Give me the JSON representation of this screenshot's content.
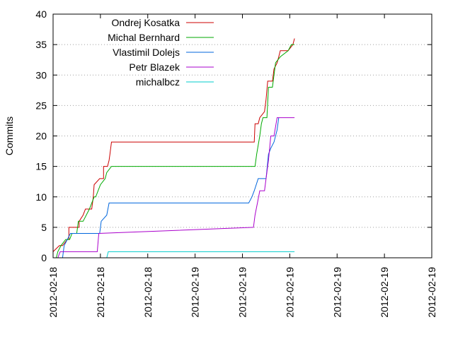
{
  "chart_data": {
    "type": "line",
    "title": "",
    "xlabel": "",
    "ylabel": "Commits",
    "ylim": [
      0,
      40
    ],
    "xlim": [
      "2012-02-18 00:00",
      "2012-02-20 00:00"
    ],
    "y_ticks": [
      "0",
      "5",
      "10",
      "15",
      "20",
      "25",
      "30",
      "35",
      "40"
    ],
    "x_ticks": [
      "2012-02-18",
      "2012-02-18",
      "2012-02-18",
      "2012-02-19",
      "2012-02-19",
      "2012-02-19",
      "2012-02-19",
      "2012-02-19",
      "2012-02-19"
    ],
    "grid": "horizontal dotted",
    "legend_position": "top-left",
    "series": [
      {
        "name": "Ondrej Kosatka",
        "color": "#cc0000",
        "points": [
          [
            "2012-02-18 00:00",
            1
          ],
          [
            "2012-02-18 00:48",
            2
          ],
          [
            "2012-02-18 01:12",
            2
          ],
          [
            "2012-02-18 01:48",
            3
          ],
          [
            "2012-02-18 02:00",
            3
          ],
          [
            "2012-02-18 02:00",
            5
          ],
          [
            "2012-02-18 03:18",
            5
          ],
          [
            "2012-02-18 03:18",
            6
          ],
          [
            "2012-02-18 03:48",
            7
          ],
          [
            "2012-02-18 04:06",
            8
          ],
          [
            "2012-02-18 04:54",
            8
          ],
          [
            "2012-02-18 05:06",
            10
          ],
          [
            "2012-02-18 05:12",
            12
          ],
          [
            "2012-02-18 05:54",
            13
          ],
          [
            "2012-02-18 06:24",
            13
          ],
          [
            "2012-02-18 06:24",
            15
          ],
          [
            "2012-02-18 06:54",
            15
          ],
          [
            "2012-02-18 07:06",
            16
          ],
          [
            "2012-02-18 07:12",
            17
          ],
          [
            "2012-02-18 07:24",
            19
          ],
          [
            "2012-02-19 01:30",
            19
          ],
          [
            "2012-02-19 01:36",
            22
          ],
          [
            "2012-02-19 02:00",
            22
          ],
          [
            "2012-02-19 02:12",
            23
          ],
          [
            "2012-02-19 02:48",
            24
          ],
          [
            "2012-02-19 03:00",
            26
          ],
          [
            "2012-02-19 03:12",
            29
          ],
          [
            "2012-02-19 03:48",
            29
          ],
          [
            "2012-02-19 04:00",
            31
          ],
          [
            "2012-02-19 04:24",
            32
          ],
          [
            "2012-02-19 04:36",
            33
          ],
          [
            "2012-02-19 04:48",
            34
          ],
          [
            "2012-02-19 05:48",
            34
          ],
          [
            "2012-02-19 06:24",
            35
          ],
          [
            "2012-02-19 06:36",
            36
          ]
        ]
      },
      {
        "name": "Michal Bernhard",
        "color": "#00aa00",
        "points": [
          [
            "2012-02-18 00:24",
            0
          ],
          [
            "2012-02-18 00:36",
            1
          ],
          [
            "2012-02-18 01:00",
            2
          ],
          [
            "2012-02-18 01:36",
            3
          ],
          [
            "2012-02-18 02:06",
            3
          ],
          [
            "2012-02-18 02:24",
            4
          ],
          [
            "2012-02-18 03:00",
            4
          ],
          [
            "2012-02-18 03:12",
            6
          ],
          [
            "2012-02-18 03:48",
            6
          ],
          [
            "2012-02-18 04:36",
            8
          ],
          [
            "2012-02-18 05:12",
            10
          ],
          [
            "2012-02-18 05:24",
            10
          ],
          [
            "2012-02-18 06:00",
            12
          ],
          [
            "2012-02-18 06:36",
            13
          ],
          [
            "2012-02-18 06:48",
            14
          ],
          [
            "2012-02-18 07:24",
            15
          ],
          [
            "2012-02-19 01:36",
            15
          ],
          [
            "2012-02-19 01:48",
            17
          ],
          [
            "2012-02-19 02:12",
            20
          ],
          [
            "2012-02-19 02:24",
            22
          ],
          [
            "2012-02-19 02:36",
            23
          ],
          [
            "2012-02-19 03:06",
            23
          ],
          [
            "2012-02-19 03:18",
            28
          ],
          [
            "2012-02-19 03:48",
            28
          ],
          [
            "2012-02-19 04:00",
            30
          ],
          [
            "2012-02-19 04:12",
            32
          ],
          [
            "2012-02-19 04:48",
            33
          ],
          [
            "2012-02-19 05:48",
            34
          ],
          [
            "2012-02-19 06:12",
            35
          ],
          [
            "2012-02-19 06:36",
            35
          ]
        ]
      },
      {
        "name": "Vlastimil Dolejs",
        "color": "#0066dd",
        "points": [
          [
            "2012-02-18 01:12",
            0
          ],
          [
            "2012-02-18 01:24",
            2
          ],
          [
            "2012-02-18 01:48",
            3
          ],
          [
            "2012-02-18 02:12",
            4
          ],
          [
            "2012-02-18 03:48",
            4
          ],
          [
            "2012-02-18 03:54",
            4
          ],
          [
            "2012-02-18 05:54",
            4
          ],
          [
            "2012-02-18 06:06",
            6
          ],
          [
            "2012-02-18 06:48",
            7
          ],
          [
            "2012-02-18 07:06",
            9
          ],
          [
            "2012-02-19 00:48",
            9
          ],
          [
            "2012-02-19 01:12",
            10
          ],
          [
            "2012-02-19 01:30",
            11
          ],
          [
            "2012-02-19 02:00",
            13
          ],
          [
            "2012-02-19 03:00",
            13
          ],
          [
            "2012-02-19 03:18",
            17
          ],
          [
            "2012-02-19 03:36",
            18
          ],
          [
            "2012-02-19 04:00",
            19
          ],
          [
            "2012-02-19 04:24",
            21
          ],
          [
            "2012-02-19 04:36",
            23
          ]
        ]
      },
      {
        "name": "Petr Blazek",
        "color": "#aa00cc",
        "points": [
          [
            "2012-02-18 00:36",
            0
          ],
          [
            "2012-02-18 00:54",
            1
          ],
          [
            "2012-02-18 05:36",
            1
          ],
          [
            "2012-02-18 05:48",
            4
          ],
          [
            "2012-02-19 01:24",
            5
          ],
          [
            "2012-02-19 01:36",
            7
          ],
          [
            "2012-02-19 01:54",
            9
          ],
          [
            "2012-02-19 02:12",
            11
          ],
          [
            "2012-02-19 02:48",
            11
          ],
          [
            "2012-02-19 03:00",
            13
          ],
          [
            "2012-02-19 03:18",
            16
          ],
          [
            "2012-02-19 03:36",
            20
          ],
          [
            "2012-02-19 04:00",
            20
          ],
          [
            "2012-02-19 04:24",
            23
          ],
          [
            "2012-02-19 06:36",
            23
          ]
        ]
      },
      {
        "name": "michalbcz",
        "color": "#00cccc",
        "points": [
          [
            "2012-02-18 06:48",
            0
          ],
          [
            "2012-02-18 07:00",
            1
          ],
          [
            "2012-02-19 06:36",
            1
          ]
        ]
      }
    ]
  }
}
